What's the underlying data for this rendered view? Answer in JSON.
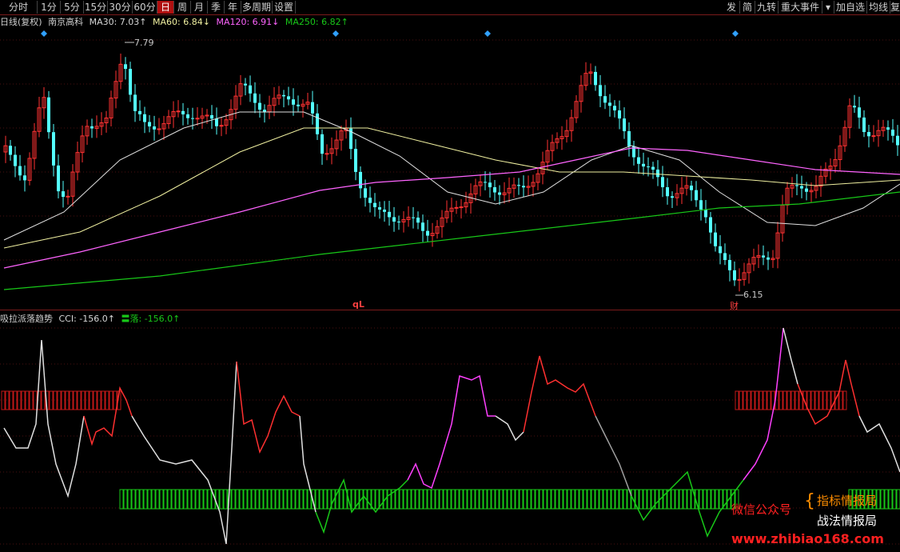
{
  "toolbar": {
    "periods": [
      "分时",
      "1分",
      "5分",
      "15分",
      "30分",
      "60分",
      "日",
      "周",
      "月",
      "季",
      "年",
      "多周期",
      "设置"
    ],
    "active": "日",
    "right_items": [
      "发",
      "简",
      "九转",
      "重大事件",
      "▾",
      "加自选",
      "均线",
      "复"
    ]
  },
  "info_bar": {
    "period_label": "日线(复权)",
    "stock_name": "南京高科",
    "ma30": "MA30: 7.03↑",
    "ma60": "MA60: 6.84↓",
    "ma120": "MA120: 6.91↓",
    "ma250": "MA250: 6.82↑"
  },
  "price_panel": {
    "high_label": "7.79",
    "low_label": "6.15",
    "marker_ql": "qL",
    "marker_cai": "财"
  },
  "indicator_panel": {
    "name": "吸拉派落趋势",
    "cci_label": "CCI: -156.0↑",
    "luo_label": "〓落: -156.0↑"
  },
  "watermark": {
    "wechat": "微信公众号",
    "brand1": "指标情报局",
    "brand2": "战法情报局",
    "site": "www.zhibiao168.com"
  },
  "colors": {
    "up": "#ff3232",
    "down": "#54ffff",
    "ma30": "#e0e0e0",
    "ma60": "#f0f0a0",
    "ma120": "#ff64ff",
    "ma250": "#18c818",
    "grid": "#7a1a1a"
  }
}
